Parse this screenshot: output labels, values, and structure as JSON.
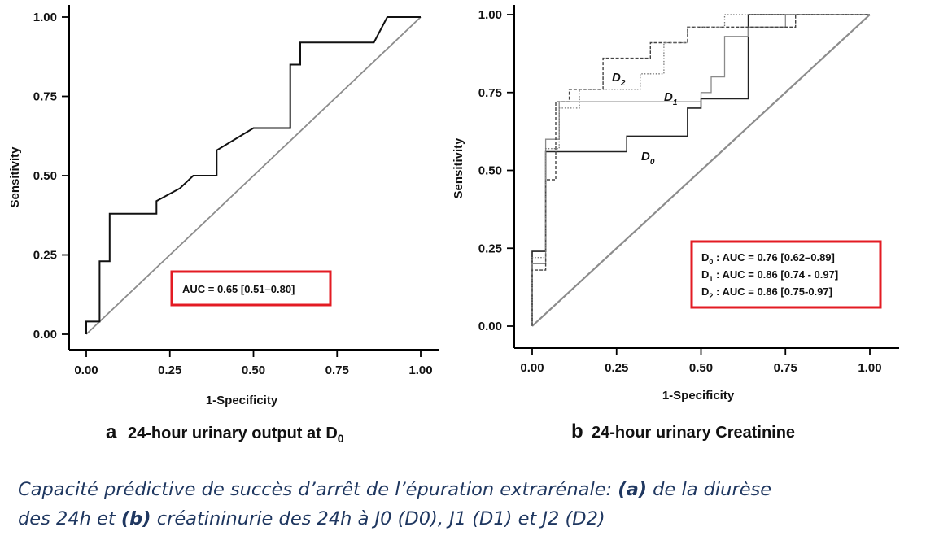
{
  "chart_data": [
    {
      "type": "line",
      "panel_letter": "a",
      "subtitle": "24-hour urinary output at D",
      "subtitle_subscript": "0",
      "xlabel": "1-Specificity",
      "ylabel": "Sensitivity",
      "xlim": [
        0,
        1
      ],
      "ylim": [
        0,
        1
      ],
      "xticks": [
        "0.00",
        "0.25",
        "0.50",
        "0.75",
        "1.00"
      ],
      "yticks": [
        "0.00",
        "0.25",
        "0.50",
        "0.75",
        "1.00"
      ],
      "annotation": "AUC = 0.65 [0.51–0.80]",
      "reference_line": [
        [
          0,
          0
        ],
        [
          1,
          1
        ]
      ],
      "series": [
        {
          "x": [
            0,
            0,
            0.04,
            0.04,
            0.07,
            0.07,
            0.21,
            0.21,
            0.28,
            0.32,
            0.39,
            0.39,
            0.5,
            0.61,
            0.61,
            0.64,
            0.64,
            0.86,
            0.9,
            1.0
          ],
          "y": [
            0,
            0.04,
            0.04,
            0.23,
            0.23,
            0.38,
            0.38,
            0.42,
            0.46,
            0.5,
            0.5,
            0.58,
            0.65,
            0.65,
            0.85,
            0.85,
            0.92,
            0.92,
            1.0,
            1.0
          ]
        }
      ]
    },
    {
      "type": "line",
      "panel_letter": "b",
      "subtitle": "24-hour urinary Creatinine",
      "xlabel": "1-Specificity",
      "ylabel": "Sensitivity",
      "xlim": [
        0,
        1
      ],
      "ylim": [
        0,
        1
      ],
      "xticks": [
        "0.00",
        "0.25",
        "0.50",
        "0.75",
        "1.00"
      ],
      "yticks": [
        "0.00",
        "0.25",
        "0.50",
        "0.75",
        "1.00"
      ],
      "annotation_lines": [
        {
          "label": "D",
          "sub": "0",
          "text": " : AUC = 0.76 [0.62–0.89]"
        },
        {
          "label": "D",
          "sub": "1",
          "text": " : AUC = 0.86 [0.74 - 0.97]"
        },
        {
          "label": "D",
          "sub": "2",
          "text": " : AUC = 0.86 [0.75-0.97]"
        }
      ],
      "reference_line": [
        [
          0,
          0
        ],
        [
          1,
          1
        ]
      ],
      "series": [
        {
          "name": "D0",
          "label": "D",
          "label_sub": "0",
          "style": "solid-dark",
          "x": [
            0,
            0,
            0.04,
            0.04,
            0.28,
            0.28,
            0.46,
            0.46,
            0.5,
            0.5,
            0.64,
            0.64,
            1.0
          ],
          "y": [
            0,
            0.24,
            0.24,
            0.56,
            0.56,
            0.61,
            0.61,
            0.7,
            0.7,
            0.73,
            0.73,
            1.0,
            1.0
          ]
        },
        {
          "name": "D1",
          "label": "D",
          "label_sub": "1",
          "style": "solid-light",
          "x": [
            0,
            0,
            0.04,
            0.04,
            0.08,
            0.08,
            0.5,
            0.5,
            0.53,
            0.53,
            0.57,
            0.57,
            0.64,
            0.64,
            0.75,
            0.75,
            1.0
          ],
          "y": [
            0,
            0.2,
            0.2,
            0.6,
            0.6,
            0.72,
            0.72,
            0.75,
            0.75,
            0.8,
            0.8,
            0.93,
            0.93,
            0.96,
            0.96,
            1.0,
            1.0
          ]
        },
        {
          "name": "D2",
          "label": "D",
          "label_sub": "2",
          "style": "dashed",
          "x": [
            0,
            0,
            0.04,
            0.04,
            0.07,
            0.07,
            0.11,
            0.11,
            0.21,
            0.21,
            0.35,
            0.35,
            0.46,
            0.46,
            0.78,
            0.78,
            1.0
          ],
          "y": [
            0,
            0.18,
            0.18,
            0.47,
            0.47,
            0.72,
            0.72,
            0.76,
            0.76,
            0.86,
            0.86,
            0.91,
            0.91,
            0.96,
            0.96,
            1.0,
            1.0
          ]
        },
        {
          "name": "D2b",
          "style": "dotted",
          "x": [
            0,
            0,
            0.04,
            0.04,
            0.08,
            0.08,
            0.14,
            0.14,
            0.32,
            0.32,
            0.39,
            0.39,
            0.46,
            0.46,
            0.57,
            0.57,
            1.0
          ],
          "y": [
            0,
            0.22,
            0.22,
            0.57,
            0.57,
            0.7,
            0.7,
            0.76,
            0.76,
            0.81,
            0.81,
            0.91,
            0.91,
            0.96,
            0.96,
            1.0,
            1.0
          ]
        }
      ]
    }
  ],
  "caption": {
    "line1_pre": "Capacité prédictive de succès d’arrêt de l’épuration extrarénale: ",
    "line1_bold_a": "(a)",
    "line1_post": " de la diurèse",
    "line2_pre": "des 24h et ",
    "line2_bold_b": "(b)",
    "line2_post": " créatininurie des 24h à J0 (D0), J1 (D1) et J2 (D2)"
  },
  "colors": {
    "annotation_box": "#e31b23",
    "curve": "#111111",
    "reference": "#8c8c8c",
    "caption": "#1f3760"
  }
}
